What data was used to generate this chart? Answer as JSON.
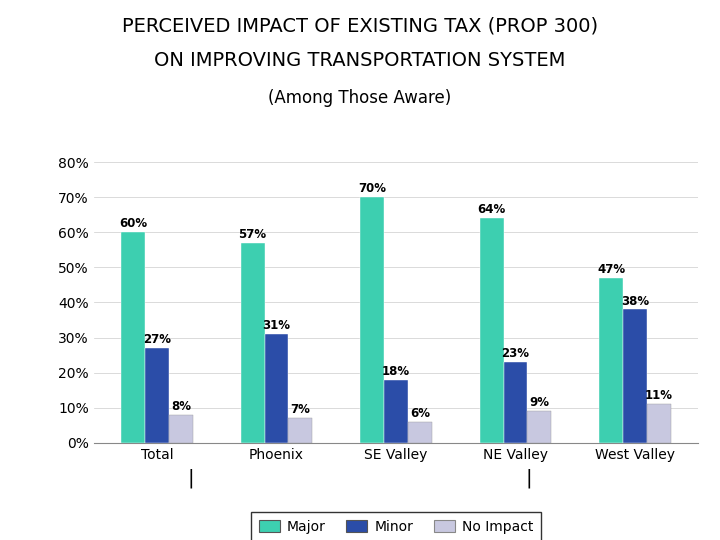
{
  "title_line1": "PERCEIVED IMPACT OF EXISTING TAX (PROP 300)",
  "title_line2": "ON IMPROVING TRANSPORTATION SYSTEM",
  "subtitle": "(Among Those Aware)",
  "categories": [
    "Total",
    "Phoenix",
    "SE Valley",
    "NE Valley",
    "West Valley"
  ],
  "major": [
    60,
    57,
    70,
    64,
    47
  ],
  "minor": [
    27,
    31,
    18,
    23,
    38
  ],
  "no_impact": [
    8,
    7,
    6,
    9,
    11
  ],
  "color_major": "#3DCFB0",
  "color_minor": "#2B4DA8",
  "color_no_impact": "#C8C8E0",
  "ylim": [
    0,
    80
  ],
  "yticks": [
    0,
    10,
    20,
    30,
    40,
    50,
    60,
    70,
    80
  ],
  "bar_width": 0.2,
  "title_fontsize": 14,
  "subtitle_fontsize": 12,
  "tick_fontsize": 10,
  "label_fontsize": 8.5,
  "legend_fontsize": 10,
  "background_color": "#FFFFFF"
}
